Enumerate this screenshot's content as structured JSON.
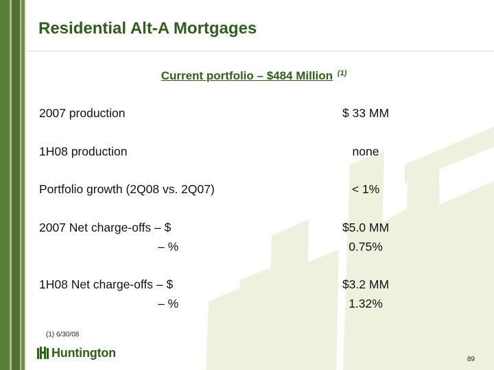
{
  "slide": {
    "title": "Residential Alt-A Mortgages",
    "subtitle": "Current portfolio – $484 Million",
    "subtitle_footnote_marker": "(1)",
    "rows": [
      {
        "label": "2007 production",
        "value": "$ 33 MM"
      },
      {
        "label": "1H08 production",
        "value": "none"
      },
      {
        "label": "Portfolio growth (2Q08 vs. 2Q07)",
        "value": "< 1%"
      },
      {
        "label": "2007 Net charge-offs – $",
        "value": "$5.0 MM"
      },
      {
        "label": "– %",
        "value": "0.75%"
      },
      {
        "label": "1H08 Net charge-offs – $",
        "value": "$3.2 MM"
      },
      {
        "label": "– %",
        "value": "1.32%"
      }
    ],
    "footnote": "(1)  6/30/08",
    "logo_text": "Huntington",
    "page_number": "89"
  },
  "colors": {
    "title": "#2f5f1b",
    "stripe_dark": "#4f7232",
    "watermark": "#eef1de"
  }
}
